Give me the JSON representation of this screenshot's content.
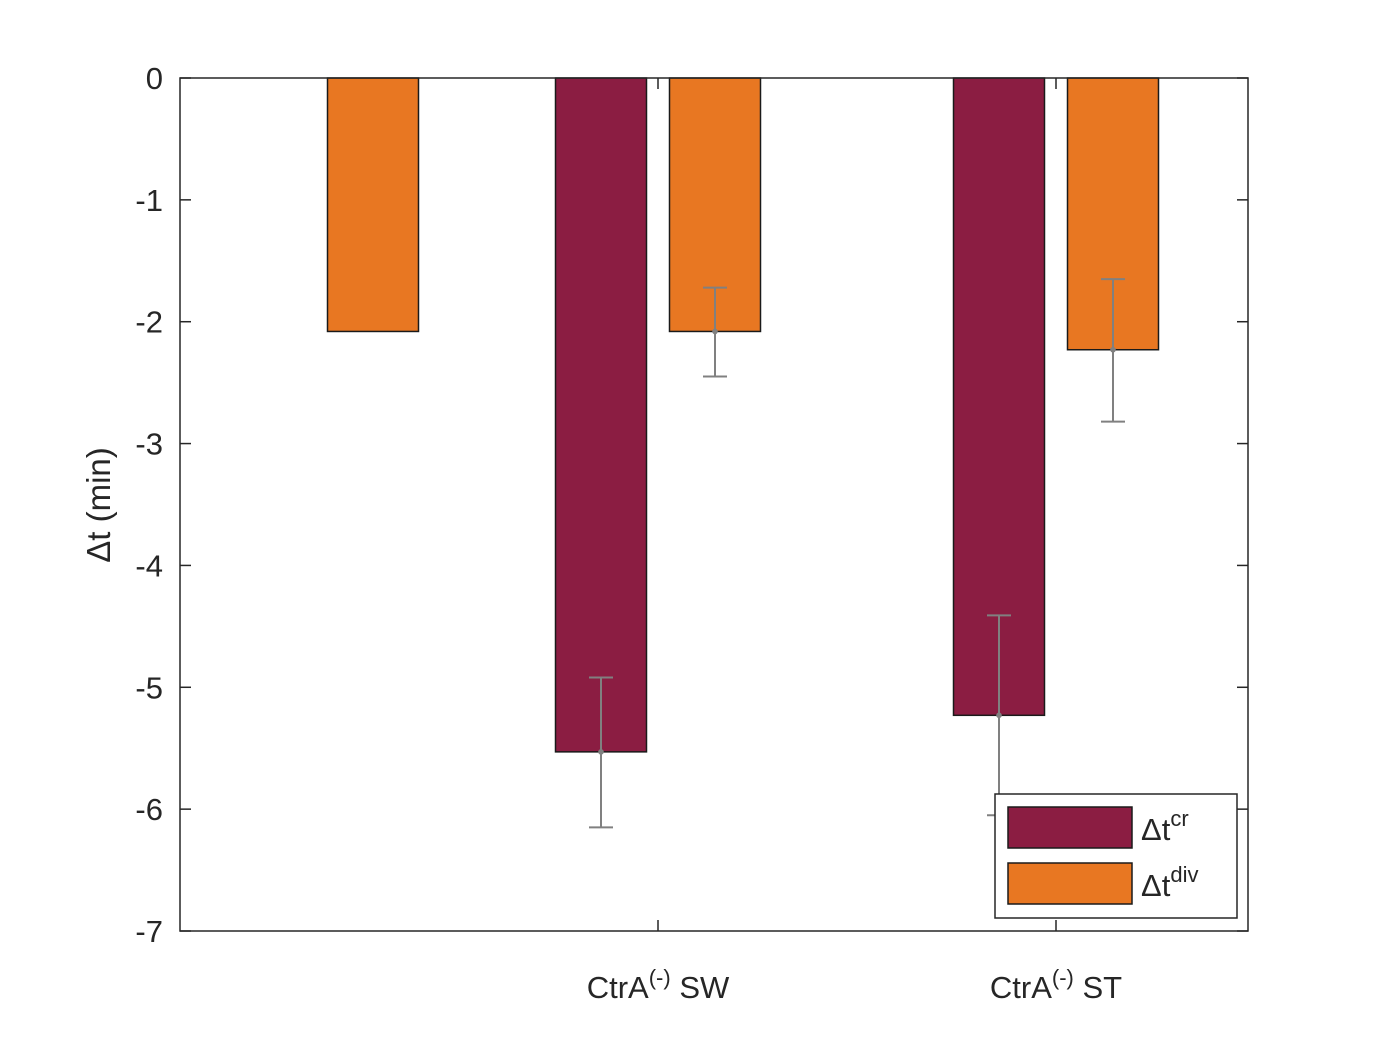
{
  "chart_data": {
    "type": "bar",
    "categories": [
      {
        "main": "",
        "sup": "",
        "rest": ""
      },
      {
        "main": "CtrA",
        "sup": "(-)",
        "rest": " SW"
      },
      {
        "main": "CtrA",
        "sup": "(-)",
        "rest": " ST"
      }
    ],
    "series": [
      {
        "name": {
          "main": "Δt",
          "sup": "cr"
        },
        "color": "#8b1d42",
        "values": [
          0,
          -5.53,
          -5.23
        ],
        "error_low": [
          null,
          -6.15,
          -6.05
        ],
        "error_high": [
          null,
          -4.92,
          -4.41
        ]
      },
      {
        "name": {
          "main": "Δt",
          "sup": "div"
        },
        "color": "#e87722",
        "values": [
          -2.08,
          -2.08,
          -2.23
        ],
        "error_low": [
          null,
          -2.45,
          -2.82
        ],
        "error_high": [
          null,
          -1.72,
          -1.65
        ]
      }
    ],
    "ylabel": "Δt (min)",
    "ylim": [
      -7,
      0
    ],
    "yticks": [
      "0",
      "-1",
      "-2",
      "-3",
      "-4",
      "-5",
      "-6",
      "-7"
    ],
    "ytick_values": [
      0,
      -1,
      -2,
      -3,
      -4,
      -5,
      -6,
      -7
    ],
    "legend_position": "bottom-right",
    "error_color": "#808080",
    "grid": false
  }
}
